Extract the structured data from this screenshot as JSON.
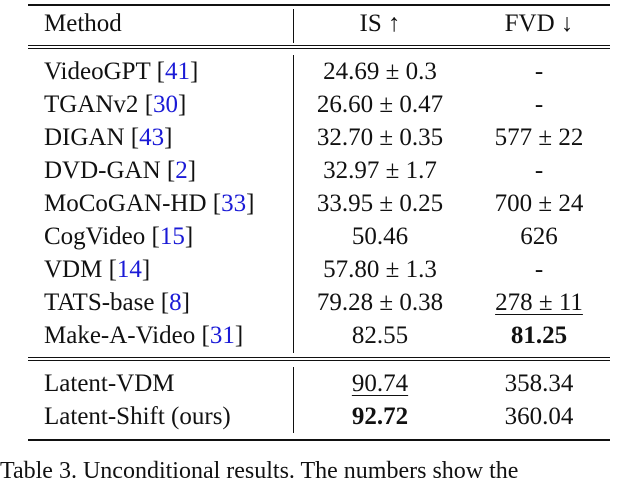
{
  "table": {
    "headers": {
      "method": "Method",
      "is": "IS ↑",
      "fvd": "FVD ↓"
    },
    "group1": [
      {
        "name": "VideoGPT",
        "cite": "41",
        "is": "24.69 ± 0.3",
        "fvd": "-"
      },
      {
        "name": "TGANv2",
        "cite": "30",
        "is": "26.60 ± 0.47",
        "fvd": "-"
      },
      {
        "name": "DIGAN",
        "cite": "43",
        "is": "32.70 ± 0.35",
        "fvd": "577 ± 22"
      },
      {
        "name": "DVD-GAN",
        "cite": "2",
        "is": "32.97 ± 1.7",
        "fvd": "-"
      },
      {
        "name": "MoCoGAN-HD",
        "cite": "33",
        "is": "33.95 ± 0.25",
        "fvd": "700 ± 24"
      },
      {
        "name": "CogVideo",
        "cite": "15",
        "is": "50.46",
        "fvd": "626"
      },
      {
        "name": "VDM",
        "cite": "14",
        "is": "57.80 ± 1.3",
        "fvd": "-"
      },
      {
        "name": "TATS-base",
        "cite": "8",
        "is": "79.28 ± 0.38",
        "fvd": "278 ± 11"
      },
      {
        "name": "Make-A-Video",
        "cite": "31",
        "is": "82.55",
        "fvd": "81.25"
      }
    ],
    "group2": [
      {
        "name": "Latent-VDM",
        "is": "90.74",
        "fvd": "358.34"
      },
      {
        "name": "Latent-Shift (ours)",
        "is": "92.72",
        "fvd": "360.04"
      }
    ]
  },
  "caption": "Table 3. Unconditional results. The numbers show the"
}
